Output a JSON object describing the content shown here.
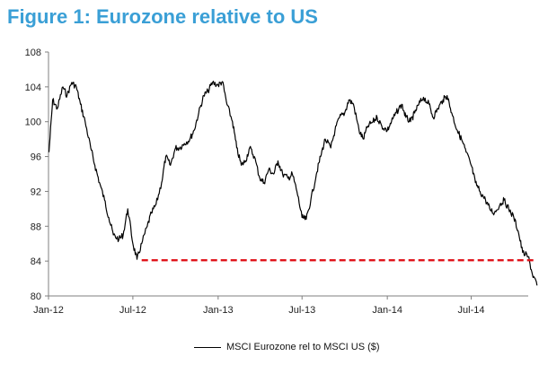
{
  "title": "Figure 1: Eurozone relative to US",
  "colors": {
    "title": "#3a9fd6",
    "series": "#000000",
    "reference": "#e0141b",
    "axis": "#7f7f7f"
  },
  "chart_data": {
    "type": "line",
    "title": "Figure 1: Eurozone relative to US",
    "xlabel": "",
    "ylabel": "",
    "ylim": [
      80,
      108
    ],
    "yticks": [
      "80",
      "84",
      "88",
      "92",
      "96",
      "100",
      "104",
      "108"
    ],
    "xlim": [
      "2012-01",
      "2014-11"
    ],
    "xticks": [
      "Jan-12",
      "Jul-12",
      "Jan-13",
      "Jul-13",
      "Jan-14",
      "Jul-14"
    ],
    "grid": false,
    "legend_position": "bottom-center",
    "series": [
      {
        "name": "MSCI Eurozone rel to MSCI US ($)",
        "x": [
          "2012-01-02",
          "2012-01-10",
          "2012-01-20",
          "2012-02-01",
          "2012-02-10",
          "2012-02-20",
          "2012-03-01",
          "2012-03-10",
          "2012-03-20",
          "2012-04-01",
          "2012-04-10",
          "2012-04-20",
          "2012-05-01",
          "2012-05-10",
          "2012-05-20",
          "2012-06-01",
          "2012-06-10",
          "2012-06-20",
          "2012-07-01",
          "2012-07-10",
          "2012-07-20",
          "2012-08-01",
          "2012-08-10",
          "2012-08-20",
          "2012-09-01",
          "2012-09-10",
          "2012-09-20",
          "2012-10-01",
          "2012-10-10",
          "2012-10-20",
          "2012-11-01",
          "2012-11-10",
          "2012-11-20",
          "2012-12-01",
          "2012-12-10",
          "2012-12-20",
          "2013-01-01",
          "2013-01-10",
          "2013-01-20",
          "2013-02-01",
          "2013-02-10",
          "2013-02-20",
          "2013-03-01",
          "2013-03-10",
          "2013-03-20",
          "2013-04-01",
          "2013-04-10",
          "2013-04-20",
          "2013-05-01",
          "2013-05-10",
          "2013-05-20",
          "2013-06-01",
          "2013-06-10",
          "2013-06-20",
          "2013-07-01",
          "2013-07-10",
          "2013-07-20",
          "2013-08-01",
          "2013-08-10",
          "2013-08-20",
          "2013-09-01",
          "2013-09-10",
          "2013-09-20",
          "2013-10-01",
          "2013-10-10",
          "2013-10-20",
          "2013-11-01",
          "2013-11-10",
          "2013-11-20",
          "2013-12-01",
          "2013-12-10",
          "2013-12-20",
          "2014-01-01",
          "2014-01-10",
          "2014-01-20",
          "2014-02-01",
          "2014-02-10",
          "2014-02-20",
          "2014-03-01",
          "2014-03-10",
          "2014-03-20",
          "2014-04-01",
          "2014-04-10",
          "2014-04-20",
          "2014-05-01",
          "2014-05-10",
          "2014-05-20",
          "2014-06-01",
          "2014-06-10",
          "2014-06-20",
          "2014-07-01",
          "2014-07-10",
          "2014-07-20",
          "2014-08-01",
          "2014-08-10",
          "2014-08-20",
          "2014-09-01",
          "2014-09-10",
          "2014-09-20",
          "2014-10-01",
          "2014-10-10",
          "2014-10-20",
          "2014-11-01",
          "2014-11-10",
          "2014-11-20"
        ],
        "values": [
          96.5,
          102.5,
          101.5,
          104,
          103,
          104.5,
          104,
          102,
          100,
          97,
          95,
          93,
          91,
          89,
          87,
          86.5,
          87,
          90,
          86,
          84.2,
          86,
          88,
          89.5,
          90.5,
          93,
          96,
          95,
          97,
          97,
          97.5,
          98,
          99,
          101,
          103,
          103.5,
          104.5,
          104.2,
          104.6,
          102,
          100,
          97,
          95,
          95.5,
          97,
          96,
          93.5,
          93,
          94.5,
          94,
          95.5,
          94,
          93.5,
          94,
          92,
          89,
          88.8,
          91,
          94,
          96,
          98,
          97,
          99,
          100.5,
          101,
          102.5,
          102,
          99,
          98,
          99.5,
          100,
          100.5,
          99.5,
          99,
          100,
          101,
          102,
          100.5,
          100,
          101,
          102,
          102.8,
          102,
          100.5,
          101.5,
          102.5,
          103,
          101,
          99,
          98,
          96.5,
          95,
          93,
          92,
          91,
          90,
          89.5,
          90.5,
          91,
          90,
          89,
          87.5,
          85,
          84.5,
          82.5,
          81.2
        ]
      },
      {
        "name": "",
        "style": "dashed",
        "x": [
          "2012-07-20",
          "2014-11-20"
        ],
        "values": [
          84.1,
          84.1
        ]
      }
    ]
  },
  "legend": {
    "label": "MSCI Eurozone rel to MSCI US ($)"
  }
}
